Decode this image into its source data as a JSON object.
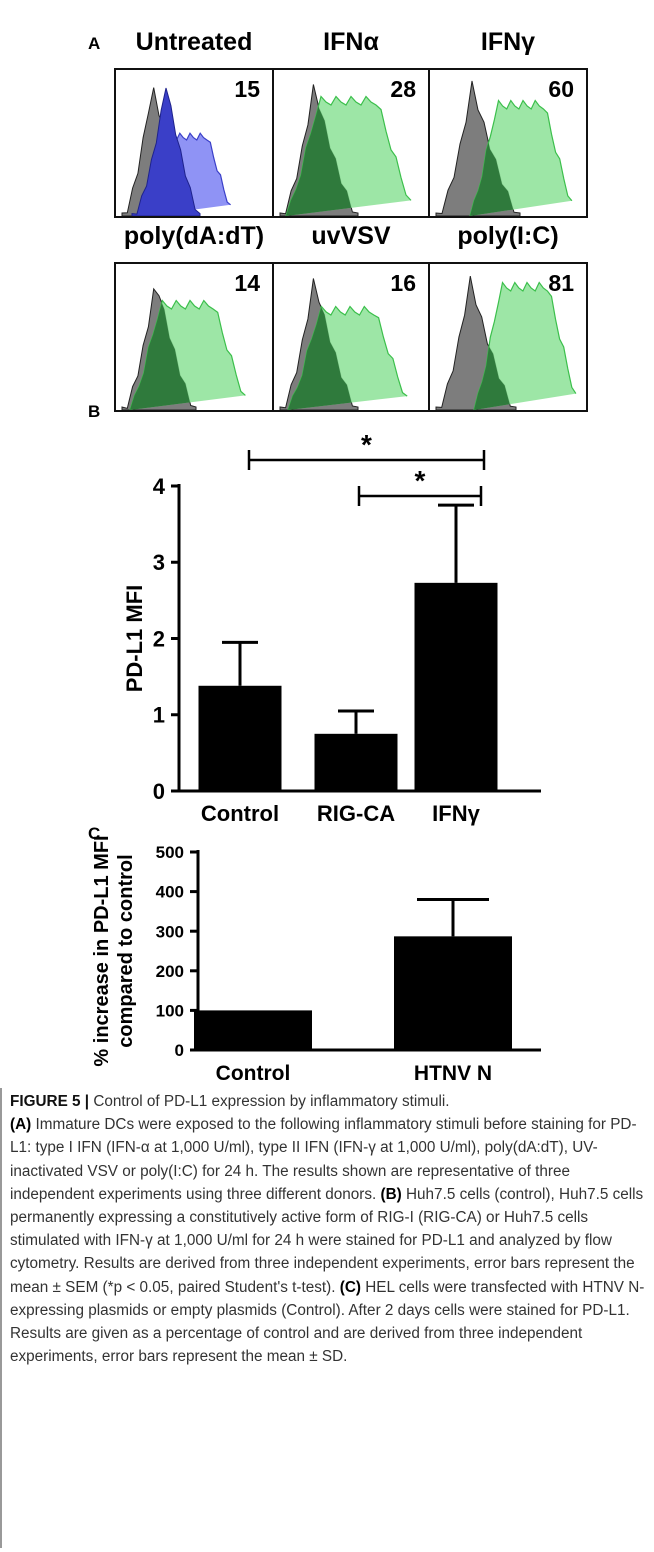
{
  "panel_a": {
    "letter": "A",
    "histograms": [
      {
        "title": "Untreated",
        "value": "15",
        "color": "blue"
      },
      {
        "title": "IFNα",
        "value": "28",
        "color": "green"
      },
      {
        "title": "IFNγ",
        "value": "60",
        "color": "green"
      },
      {
        "title": "poly(dA:dT)",
        "value": "14",
        "color": "green"
      },
      {
        "title": "uvVSV",
        "value": "16",
        "color": "green"
      },
      {
        "title": "poly(I:C)",
        "value": "81",
        "color": "green"
      }
    ]
  },
  "chart_data": [
    {
      "panel": "B",
      "type": "bar",
      "categories": [
        "Control",
        "RIG-CA",
        "IFNγ"
      ],
      "values": [
        1.38,
        0.75,
        2.73
      ],
      "error": [
        0.57,
        0.3,
        1.02
      ],
      "ylabel": "PD-L1 MFI",
      "xlabel": "",
      "ylim": [
        0,
        4
      ],
      "yticks": [
        "0",
        "1",
        "2",
        "3",
        "4"
      ],
      "significance": [
        {
          "from": "Control",
          "to": "IFNγ",
          "label": "*"
        },
        {
          "from": "RIG-CA",
          "to": "IFNγ",
          "label": "*"
        }
      ]
    },
    {
      "panel": "C",
      "type": "bar",
      "categories": [
        "Control",
        "HTNV N"
      ],
      "values": [
        100,
        287
      ],
      "error": [
        0,
        93
      ],
      "ylabel": "% increase in PD-L1 MFI compared to control",
      "ylabel_lines": [
        "% increase in PD-L1 MFI",
        "compared to control"
      ],
      "xlabel": "",
      "ylim": [
        0,
        500
      ],
      "yticks": [
        "0",
        "100",
        "200",
        "300",
        "400",
        "500"
      ]
    }
  ],
  "caption": {
    "label": "FIGURE 5 |",
    "title": " Control of PD-L1 expression by inflammatory stimuli.",
    "a_label": "(A)",
    "a_text": " Immature DCs were exposed to the following inflammatory stimuli before staining for PD-L1: type I IFN (IFN-α at 1,000 U/ml), type II IFN (IFN-γ at 1,000 U/ml), poly(dA:dT), UV-inactivated VSV or poly(I:C) for 24 h. The results shown are representative of three independent experiments using three different donors. ",
    "b_label": "(B)",
    "b_text": " Huh7.5 cells (control), Huh7.5 cells permanently expressing a constitutively active form of RIG-I (RIG-CA) or Huh7.5 cells stimulated with IFN-γ at 1,000 U/ml for 24 h were stained for PD-L1 and analyzed by flow cytometry. Results are derived from three independent experiments, error bars represent the mean ± SEM (*p < 0.05, paired Student's t-test). ",
    "c_label": "(C)",
    "c_text": " HEL cells were transfected with HTNV N-expressing plasmids or empty plasmids (Control). After 2 days cells were stained for PD-L1. Results are given as a percentage of control and are derived from three independent experiments, error bars represent the mean ± SD."
  },
  "colors": {
    "blue_fill": "#3a3fc8",
    "blue_light": "#8f93f5",
    "green_fill": "#8fe29a",
    "green_dark": "#2f7a3c",
    "green_line": "#3bbf4b",
    "gray_fill": "#7d7d7d",
    "bar": "#000000"
  }
}
